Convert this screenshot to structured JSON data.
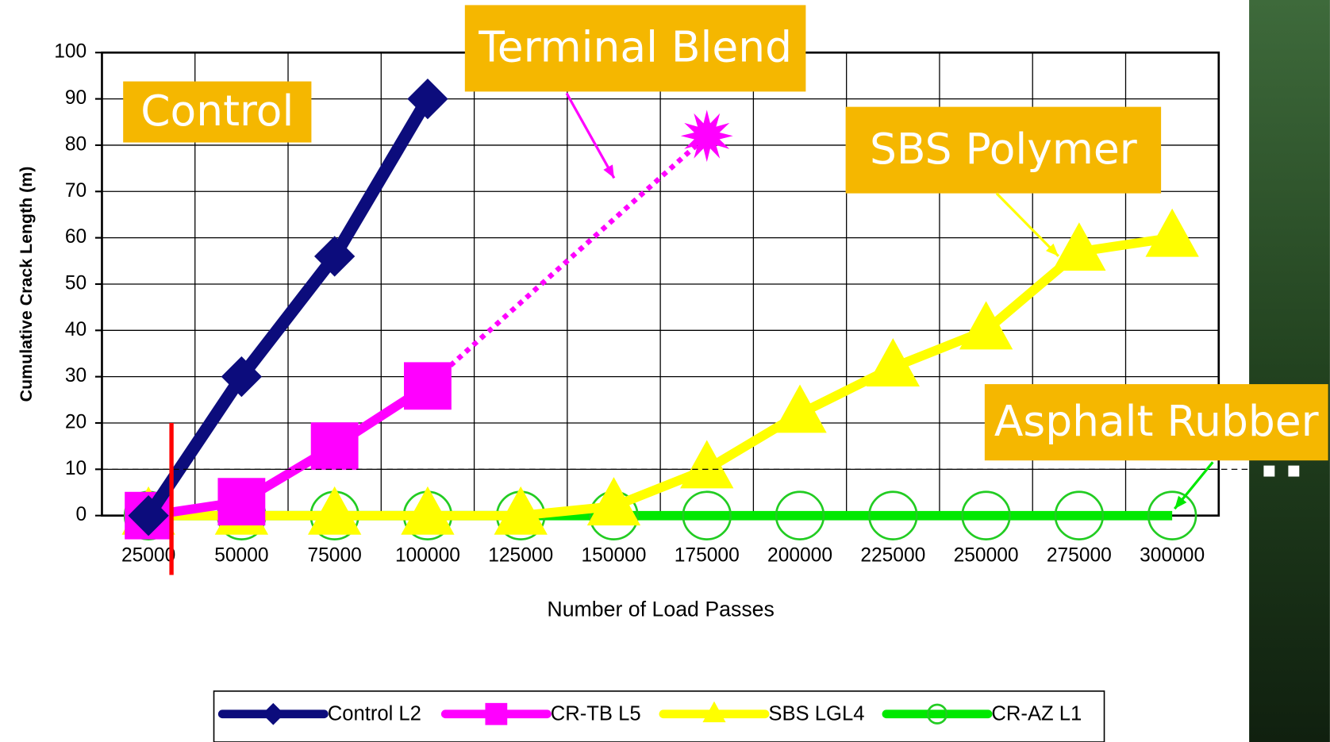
{
  "chart_data": {
    "type": "line",
    "y_label": "Cumulative Crack Length (m)",
    "x_label": "Number of Load Passes",
    "categories": [
      "25000",
      "50000",
      "75000",
      "100000",
      "125000",
      "150000",
      "175000",
      "200000",
      "225000",
      "250000",
      "275000",
      "300000"
    ],
    "ylim": [
      0,
      100
    ],
    "yticks": [
      0,
      10,
      20,
      30,
      40,
      50,
      60,
      70,
      80,
      90,
      100
    ],
    "grid": true,
    "threshold_line": 10,
    "series": [
      {
        "name": "Control L2",
        "color": "#0c0c7c",
        "marker": "diamond",
        "values": [
          0,
          30,
          56,
          90,
          null,
          null,
          null,
          null,
          null,
          null,
          null,
          null
        ]
      },
      {
        "name": "CR-TB L5",
        "color": "#ff00ff",
        "marker": "square",
        "values": [
          0,
          3,
          15,
          28,
          null,
          null,
          82,
          null,
          null,
          null,
          null,
          null
        ]
      },
      {
        "name": "SBS LGL4",
        "color": "#ffff00",
        "marker": "triangle",
        "values": [
          0,
          0,
          0,
          0,
          0,
          2,
          10,
          22,
          32,
          40,
          57,
          60
        ]
      },
      {
        "name": "CR-AZ L1",
        "color": "#00e800",
        "marker": "circle",
        "values": [
          0,
          0,
          0,
          0,
          0,
          0,
          0,
          0,
          0,
          0,
          0,
          0
        ]
      }
    ],
    "annotations": [
      "Control",
      "Terminal Blend",
      "SBS Polymer",
      "Asphalt Rubber"
    ]
  }
}
